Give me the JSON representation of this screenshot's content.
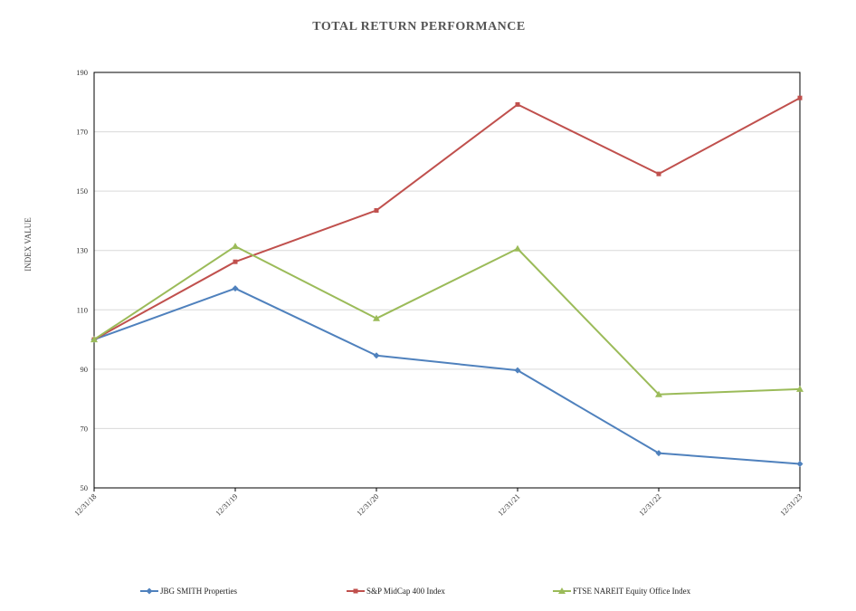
{
  "chart_data": {
    "type": "line",
    "title": "TOTAL RETURN PERFORMANCE",
    "ylabel": "INDEX VALUE",
    "xlabel": "",
    "categories": [
      "12/31/18",
      "12/31/19",
      "12/31/20",
      "12/31/21",
      "12/31/22",
      "12/31/23"
    ],
    "ylim": [
      50,
      190
    ],
    "yticks": [
      50,
      70,
      90,
      110,
      130,
      150,
      170,
      190
    ],
    "grid": true,
    "legend_position": "bottom",
    "series": [
      {
        "name": "JBG SMITH Properties",
        "color": "#4f81bd",
        "marker": "diamond",
        "values": [
          100,
          117.2,
          94.6,
          89.6,
          61.7,
          58.1
        ]
      },
      {
        "name": "S&P MidCap 400 Index",
        "color": "#c0504d",
        "marker": "square",
        "values": [
          100,
          126.2,
          143.5,
          179.2,
          155.8,
          181.4
        ]
      },
      {
        "name": "FTSE NAREIT Equity Office Index",
        "color": "#9bbb59",
        "marker": "triangle",
        "values": [
          100,
          131.4,
          107.1,
          130.6,
          81.5,
          83.3
        ]
      }
    ]
  }
}
